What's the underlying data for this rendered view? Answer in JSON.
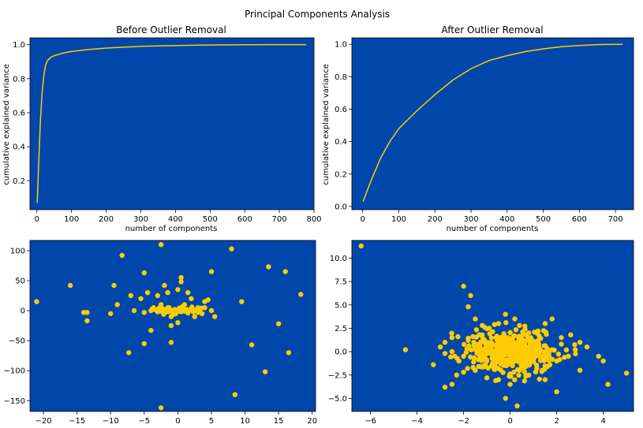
{
  "figure": {
    "suptitle": "Principal Components Analysis",
    "plot_bg": "#0047AB",
    "series_color": "#FFCC00"
  },
  "chart_data": [
    {
      "type": "line",
      "title": "Before Outlier Removal",
      "xlabel": "number of components",
      "ylabel": "cumulative explained variance",
      "xlim": [
        -20,
        800
      ],
      "ylim": [
        0.03,
        1.04
      ],
      "xticks": [
        0,
        100,
        200,
        300,
        400,
        500,
        600,
        700,
        800
      ],
      "yticks": [
        0.2,
        0.4,
        0.6,
        0.8,
        1.0
      ],
      "ytick_labels": [
        "0.2",
        "0.4",
        "0.6",
        "0.8",
        "1.0"
      ],
      "series": [
        {
          "x": [
            1,
            5,
            10,
            15,
            20,
            25,
            30,
            40,
            50,
            75,
            100,
            150,
            200,
            300,
            400,
            500,
            600,
            700,
            778
          ],
          "y": [
            0.07,
            0.3,
            0.55,
            0.72,
            0.82,
            0.88,
            0.905,
            0.925,
            0.935,
            0.95,
            0.96,
            0.972,
            0.98,
            0.99,
            0.995,
            0.998,
            0.999,
            1.0,
            1.0
          ]
        }
      ]
    },
    {
      "type": "line",
      "title": "After Outlier Removal",
      "xlabel": "number of components",
      "ylabel": "cumulative explained variance",
      "xlim": [
        -30,
        750
      ],
      "ylim": [
        -0.02,
        1.04
      ],
      "xticks": [
        0,
        100,
        200,
        300,
        400,
        500,
        600,
        700
      ],
      "yticks": [
        0.0,
        0.2,
        0.4,
        0.6,
        0.8,
        1.0
      ],
      "ytick_labels": [
        "0.0",
        "0.2",
        "0.4",
        "0.6",
        "0.8",
        "1.0"
      ],
      "series": [
        {
          "x": [
            1,
            25,
            50,
            75,
            100,
            150,
            200,
            250,
            300,
            350,
            400,
            450,
            500,
            550,
            600,
            650,
            700,
            720
          ],
          "y": [
            0.03,
            0.17,
            0.3,
            0.4,
            0.48,
            0.59,
            0.69,
            0.78,
            0.85,
            0.9,
            0.93,
            0.955,
            0.972,
            0.985,
            0.993,
            0.998,
            1.0,
            1.0
          ]
        }
      ]
    },
    {
      "type": "scatter",
      "xlim": [
        -22,
        20.5
      ],
      "ylim": [
        -168,
        117
      ],
      "xticks": [
        -20,
        -15,
        -10,
        -5,
        0,
        5,
        10,
        15,
        20
      ],
      "yticks": [
        -150,
        -100,
        -50,
        0,
        50,
        100
      ],
      "series": [
        {
          "points": [
            [
              -21,
              15
            ],
            [
              -16,
              42
            ],
            [
              -14,
              -3
            ],
            [
              -13.5,
              -3
            ],
            [
              -13.5,
              -17
            ],
            [
              -10,
              -5
            ],
            [
              -9.5,
              42
            ],
            [
              -9,
              10
            ],
            [
              -8.3,
              92
            ],
            [
              -7.3,
              -70
            ],
            [
              -7,
              25
            ],
            [
              -6.5,
              0
            ],
            [
              -5.5,
              20
            ],
            [
              -5,
              63
            ],
            [
              -5,
              -3
            ],
            [
              -5,
              -55
            ],
            [
              -4.5,
              30
            ],
            [
              -4,
              -33
            ],
            [
              -3,
              25
            ],
            [
              -2.5,
              10
            ],
            [
              -2.5,
              110
            ],
            [
              -2.5,
              -162
            ],
            [
              -2,
              42
            ],
            [
              -1.5,
              5
            ],
            [
              -1.5,
              30
            ],
            [
              -1,
              -10
            ],
            [
              -1,
              -25
            ],
            [
              -1,
              -53
            ],
            [
              0,
              35
            ],
            [
              0,
              -20
            ],
            [
              0.5,
              55
            ],
            [
              0.5,
              48
            ],
            [
              1,
              10
            ],
            [
              1.5,
              30
            ],
            [
              2,
              20
            ],
            [
              2.5,
              -10
            ],
            [
              3,
              5
            ],
            [
              4,
              15
            ],
            [
              4,
              5
            ],
            [
              4.5,
              18
            ],
            [
              5,
              0
            ],
            [
              5,
              65
            ],
            [
              5.5,
              -10
            ],
            [
              8,
              103
            ],
            [
              8.5,
              -140
            ],
            [
              9.5,
              15
            ],
            [
              11,
              -57
            ],
            [
              13,
              -102
            ],
            [
              13.5,
              73
            ],
            [
              15,
              -22
            ],
            [
              16,
              65
            ],
            [
              16.5,
              -70
            ],
            [
              18.3,
              27
            ],
            [
              -3.5,
              2
            ],
            [
              -3,
              -2
            ],
            [
              -2.8,
              4
            ],
            [
              -2.5,
              -1
            ],
            [
              -2.2,
              3
            ],
            [
              -2,
              -4
            ],
            [
              -1.8,
              1
            ],
            [
              -1.5,
              -2
            ],
            [
              -1.3,
              5
            ],
            [
              -1,
              0
            ],
            [
              -0.8,
              -3
            ],
            [
              -0.5,
              2
            ],
            [
              -0.3,
              -5
            ],
            [
              0,
              1
            ],
            [
              0.2,
              4
            ],
            [
              0.5,
              -2
            ],
            [
              0.7,
              3
            ],
            [
              1,
              -1
            ],
            [
              1.3,
              2
            ],
            [
              1.5,
              -4
            ],
            [
              1.8,
              1
            ],
            [
              2,
              3
            ],
            [
              2.3,
              -2
            ],
            [
              2.5,
              0
            ],
            [
              2.8,
              2
            ],
            [
              3,
              -3
            ],
            [
              3.3,
              1
            ],
            [
              3.5,
              4
            ],
            [
              -4,
              0
            ],
            [
              -3.8,
              3
            ],
            [
              -0.2,
              0
            ],
            [
              0.3,
              -1
            ],
            [
              1.1,
              1
            ],
            [
              -1.1,
              -1
            ],
            [
              0.6,
              6
            ],
            [
              -0.6,
              -6
            ],
            [
              2.1,
              6
            ],
            [
              -2.1,
              -6
            ],
            [
              3.6,
              -5
            ],
            [
              -3.6,
              5
            ]
          ]
        }
      ]
    },
    {
      "type": "scatter",
      "xlim": [
        -6.8,
        5.3
      ],
      "ylim": [
        -6.4,
        11.9
      ],
      "xticks": [
        -6,
        -4,
        -2,
        0,
        2,
        4
      ],
      "yticks": [
        -5.0,
        -2.5,
        0.0,
        2.5,
        5.0,
        7.5,
        10.0
      ],
      "ytick_labels": [
        "−5.0",
        "−2.5",
        "0.0",
        "2.5",
        "5.0",
        "7.5",
        "10.0"
      ],
      "series": [
        {
          "points": [
            [
              -6.4,
              11.3
            ],
            [
              -4.5,
              0.2
            ],
            [
              -3.3,
              -1.4
            ],
            [
              -2.8,
              -3.8
            ],
            [
              -2.5,
              -3.5
            ],
            [
              -2.3,
              -2.5
            ],
            [
              -2.8,
              1.0
            ],
            [
              -2.0,
              7.0
            ],
            [
              -1.7,
              6.0
            ],
            [
              -1.8,
              4.8
            ],
            [
              -1.5,
              3.5
            ],
            [
              -1.2,
              2.8
            ],
            [
              -0.9,
              2.5
            ],
            [
              -0.5,
              3.0
            ],
            [
              -0.2,
              4.0
            ],
            [
              0.2,
              3.5
            ],
            [
              0.4,
              2.8
            ],
            [
              0.8,
              2.0
            ],
            [
              1.2,
              2.2
            ],
            [
              1.5,
              3.0
            ],
            [
              1.8,
              3.5
            ],
            [
              2.2,
              1.5
            ],
            [
              2.6,
              1.8
            ],
            [
              3.0,
              1.0
            ],
            [
              3.3,
              0.5
            ],
            [
              3.8,
              -0.5
            ],
            [
              4.0,
              -1.0
            ],
            [
              4.2,
              -3.5
            ],
            [
              5.0,
              -2.3
            ],
            [
              2.0,
              -4.3
            ],
            [
              1.5,
              -3.0
            ],
            [
              0.8,
              -2.5
            ],
            [
              0.4,
              -2.0
            ],
            [
              0.0,
              -3.5
            ],
            [
              -0.2,
              -5.0
            ],
            [
              0.3,
              -5.8
            ],
            [
              -0.5,
              -3.0
            ],
            [
              -1.0,
              -2.8
            ],
            [
              -1.5,
              -2.0
            ],
            [
              -2.0,
              -2.2
            ],
            [
              -2.2,
              -1.0
            ],
            [
              -2.5,
              0.0
            ],
            [
              -1.8,
              1.2
            ],
            [
              -1.2,
              1.8
            ],
            [
              -0.6,
              1.5
            ],
            [
              0.5,
              1.0
            ],
            [
              1.0,
              0.5
            ],
            [
              1.5,
              -0.5
            ],
            [
              2.0,
              -1.0
            ],
            [
              2.5,
              -0.5
            ],
            [
              3.0,
              -2.0
            ],
            [
              -3.0,
              0.5
            ],
            [
              -2.5,
              1.5
            ],
            [
              -1.0,
              -1.0
            ],
            [
              -0.5,
              -0.5
            ],
            [
              0.0,
              0.0
            ],
            [
              0.5,
              0.3
            ],
            [
              -0.3,
              0.8
            ],
            [
              0.8,
              -0.8
            ],
            [
              -0.8,
              0.2
            ],
            [
              0.3,
              -0.3
            ],
            [
              -1.5,
              0.5
            ],
            [
              1.2,
              1.2
            ],
            [
              -1.2,
              -0.3
            ],
            [
              1.8,
              0.2
            ],
            [
              -0.1,
              1.5
            ],
            [
              0.1,
              -1.5
            ],
            [
              -2.0,
              -0.5
            ],
            [
              2.2,
              0.8
            ],
            [
              -0.7,
              -1.8
            ],
            [
              0.7,
              1.8
            ],
            [
              1.6,
              -1.6
            ],
            [
              -1.6,
              1.6
            ],
            [
              2.8,
              0.2
            ],
            [
              -2.8,
              -0.2
            ]
          ],
          "dense_cluster": {
            "center": [
              0.0,
              0.0
            ],
            "spread": [
              0.9,
              1.1
            ],
            "count": 420
          }
        }
      ]
    }
  ]
}
